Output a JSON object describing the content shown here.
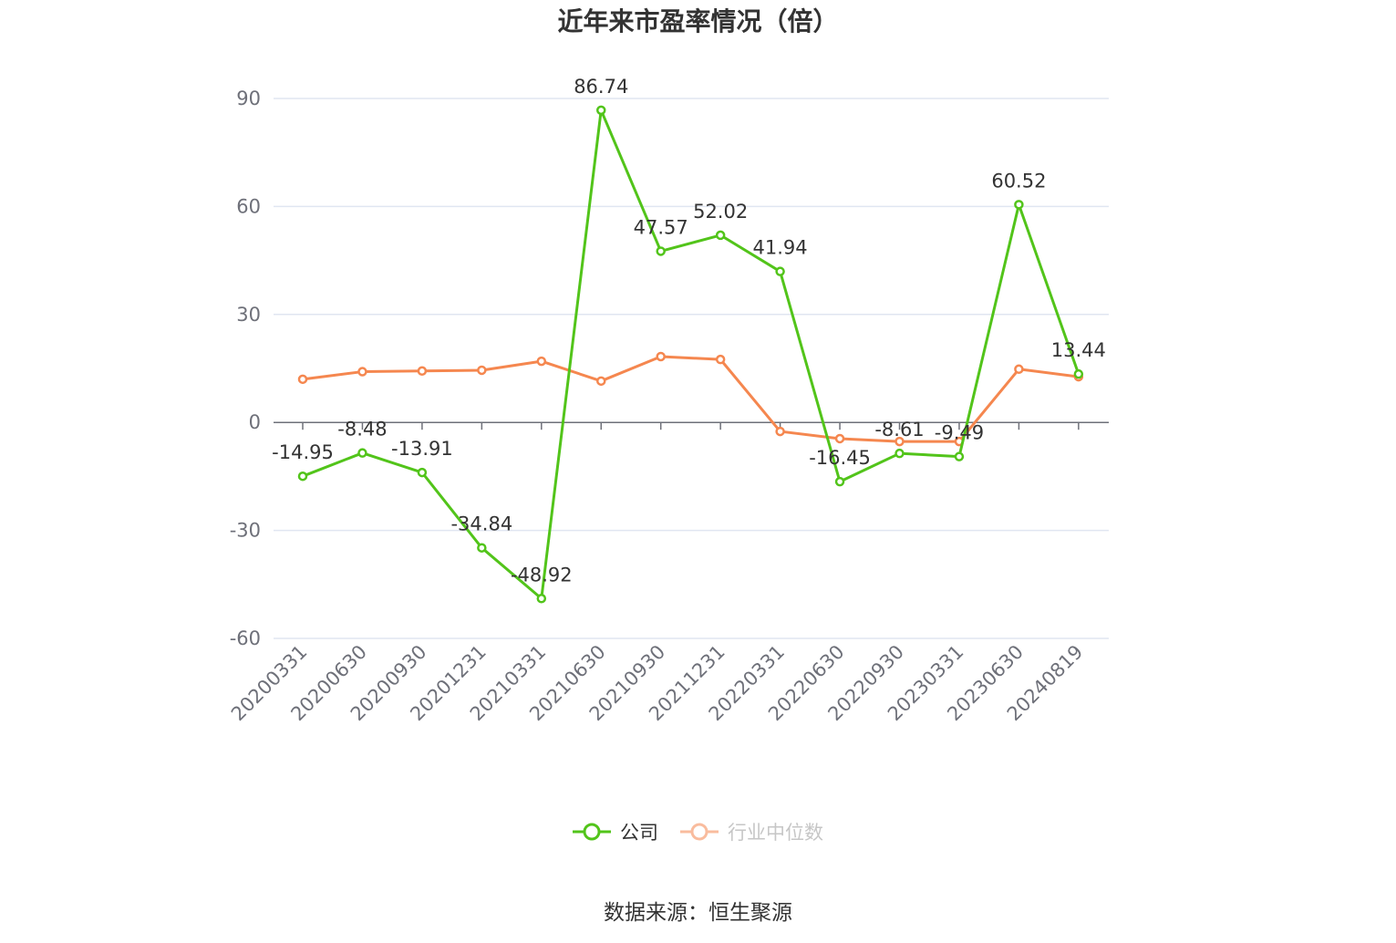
{
  "chart_data": {
    "type": "line",
    "title": "近年来市盈率情况（倍）",
    "categories": [
      "20200331",
      "20200630",
      "20200930",
      "20201231",
      "20210331",
      "20210630",
      "20210930",
      "20211231",
      "20220331",
      "20220630",
      "20220930",
      "20230331",
      "20230630",
      "20240819"
    ],
    "series": [
      {
        "name": "公司",
        "color": "#52c41a",
        "values": [
          -14.95,
          -8.48,
          -13.91,
          -34.84,
          -48.92,
          86.74,
          47.57,
          52.02,
          41.94,
          -16.45,
          -8.61,
          -9.49,
          60.52,
          13.44
        ],
        "labels": [
          "-14.95",
          "-8.48",
          "-13.91",
          "-34.84",
          "-48.92",
          "86.74",
          "47.57",
          "52.02",
          "41.94",
          "-16.45",
          "-8.61",
          "-9.49",
          "60.52",
          "13.44"
        ]
      },
      {
        "name": "行业中位数",
        "color": "#f5874f",
        "values": [
          12.0,
          14.1,
          14.3,
          14.5,
          17.0,
          11.5,
          18.3,
          17.5,
          -2.5,
          -4.5,
          -5.3,
          -5.3,
          14.8,
          12.7
        ]
      }
    ],
    "yticks": [
      90,
      60,
      30,
      0,
      -30,
      -60
    ],
    "ytick_labels": [
      "90",
      "60",
      "30",
      "0",
      "-30",
      "-60"
    ],
    "ylim": [
      -60,
      90
    ],
    "grid": true,
    "legend_position": "bottom-center",
    "xlabel": "",
    "ylabel": ""
  },
  "source": "数据来源：恒生聚源"
}
